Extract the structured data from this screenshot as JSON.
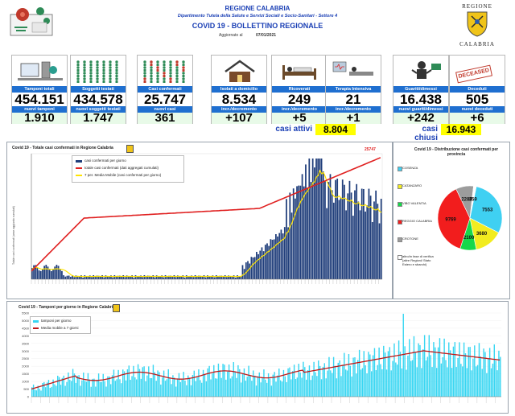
{
  "header": {
    "region": "REGIONE CALABRIA",
    "dept": "Dipartimento Tutela della Salute e Servizi Sociali e Socio-Sanitari - Settore 4",
    "bulletin": "COVID 19 - BOLLETTINO REGIONALE",
    "updated_label": "Aggiornato al",
    "updated_date": "07/01/2021",
    "logo_top": "REGIONE",
    "logo_bottom": "CALABRIA"
  },
  "stats": [
    {
      "label": "Tamponi totali",
      "value": "454.151",
      "sub_label": "nuovi tamponi",
      "sub_value": "1.910",
      "icon": "lab-test-icon"
    },
    {
      "label": "Soggetti testati",
      "value": "434.578",
      "sub_label": "nuovi soggetti testati",
      "sub_value": "1.747",
      "icon": "people-grid-icon"
    },
    {
      "label": "Casi confermati",
      "value": "25.747",
      "sub_label": "nuovi casi",
      "sub_value": "361",
      "icon": "people-grid-red-icon"
    },
    {
      "label": "Isolati a domicilio",
      "value": "8.534",
      "sub_label": "incr./decremento",
      "sub_value": "+107",
      "icon": "house-icon"
    },
    {
      "label": "Ricoverati",
      "value": "249",
      "sub_label": "incr./decremento",
      "sub_value": "+5",
      "icon": "hospital-bed-icon"
    },
    {
      "label": "Terapia Intensiva",
      "value": "21",
      "sub_label": "incr./decremento",
      "sub_value": "+1",
      "icon": "icu-icon"
    },
    {
      "label": "Guariti/dimessi",
      "value": "16.438",
      "sub_label": "nuovi guariti/dimessi",
      "sub_value": "+242",
      "icon": "recovered-icon"
    },
    {
      "label": "Deceduti",
      "value": "505",
      "sub_label": "nuovi deceduti",
      "sub_value": "+6",
      "icon": "deceased-stamp-icon"
    }
  ],
  "deceased_stamp": "DECEASED",
  "casi_attivi": {
    "label": "casi attivi",
    "value": "8.804"
  },
  "casi_chiusi": {
    "label": "casi chiusi",
    "value": "16.943"
  },
  "chart_totale": {
    "title": "Covid 19 - Totale casi confermati in Regione Calabria",
    "ylabel": "Totale casi confermati (asse aggiunto cumulati)",
    "legend": [
      "casi confermati per giorno",
      "totale casi confermati (dati aggregati cumulati)",
      "7 per. Media Mobile (casi confermati per giorno)"
    ],
    "end_value": "25747"
  },
  "chart_province": {
    "title": "Covid 19 - Distribuzione casi confermati per provincia",
    "legend": [
      "COSENZA",
      "CATANZARO",
      "VIBO VALENTIA",
      "REGGIO CALABRIA",
      "CROTONE",
      "altro/in fase di verifica (altre Regioni/ Stato Estero e sbarchi)"
    ]
  },
  "chart_tamponi": {
    "title": "Covid 19 - Tamponi per giorno in Regione Calabria",
    "legend": [
      "tamponi per giorno",
      "Media mobile a 7 giorni"
    ]
  },
  "chart_data": [
    {
      "type": "pie",
      "title": "Covid 19 - Distribuzione casi confermati per provincia",
      "categories": [
        "COSENZA",
        "CATANZARO",
        "VIBO VALENTIA",
        "REGGIO CALABRIA",
        "CROTONE",
        "altro/in fase di verifica"
      ],
      "values": [
        7553,
        3680,
        2100,
        9769,
        2286,
        359
      ],
      "colors": [
        "#3fd0f2",
        "#f2ec1f",
        "#16d84a",
        "#f21d1d",
        "#9c9c9c",
        "#ffffff"
      ]
    },
    {
      "type": "line",
      "title": "Covid 19 - Tamponi per giorno in Regione Calabria",
      "series": [
        {
          "name": "tamponi per giorno"
        },
        {
          "name": "Media mobile a 7 giorni"
        }
      ],
      "ylim": [
        0,
        5500
      ],
      "yticks": [
        "0",
        "500",
        "1000",
        "1500",
        "2000",
        "2500",
        "3000",
        "3500",
        "4000",
        "4500",
        "5000",
        "5500"
      ]
    },
    {
      "type": "bar",
      "title": "Covid 19 - Totale casi confermati in Regione Calabria",
      "series": [
        {
          "name": "casi confermati per giorno"
        },
        {
          "name": "totale casi confermati (dati aggregati cumulati)"
        },
        {
          "name": "7 per. Media Mobile (casi confermati per giorno)"
        }
      ],
      "annotation": "25747"
    }
  ]
}
